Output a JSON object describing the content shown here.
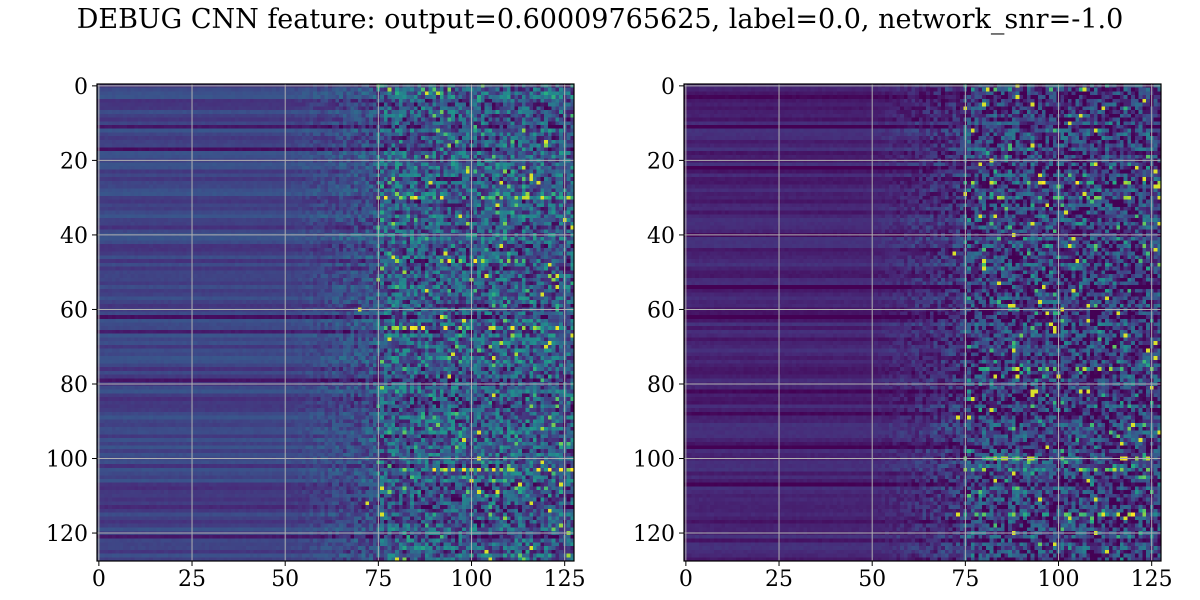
{
  "title": "DEBUG CNN feature: output=0.60009765625, label=0.0, network_snr=-1.0",
  "chart_data": [
    {
      "type": "heatmap",
      "shape": [
        128,
        128
      ],
      "colormap": "viridis",
      "grid": true,
      "xlim": [
        0,
        127
      ],
      "ylim": [
        127,
        0
      ],
      "x_ticks": [
        0,
        25,
        50,
        75,
        100,
        125
      ],
      "y_ticks": [
        0,
        20,
        40,
        60,
        80,
        100,
        120
      ],
      "x_tick_labels": [
        "0",
        "25",
        "50",
        "75",
        "100",
        "125"
      ],
      "y_tick_labels": [
        "0",
        "20",
        "40",
        "60",
        "80",
        "100",
        "120"
      ],
      "pattern": {
        "smooth_columns": [
          0,
          50
        ],
        "noisy_columns": [
          75,
          127
        ],
        "bright_rows": [
          30,
          47,
          65,
          103
        ],
        "dark_rows": [
          11,
          17,
          62,
          66,
          79,
          84,
          108,
          113,
          121
        ]
      }
    },
    {
      "type": "heatmap",
      "shape": [
        128,
        128
      ],
      "colormap": "viridis",
      "grid": true,
      "xlim": [
        0,
        127
      ],
      "ylim": [
        127,
        0
      ],
      "x_ticks": [
        0,
        25,
        50,
        75,
        100,
        125
      ],
      "y_ticks": [
        0,
        20,
        40,
        60,
        80,
        100,
        120
      ],
      "x_tick_labels": [
        "0",
        "25",
        "50",
        "75",
        "100",
        "125"
      ],
      "y_tick_labels": [
        "0",
        "20",
        "40",
        "60",
        "80",
        "100",
        "120"
      ],
      "pattern": {
        "smooth_columns": [
          0,
          50
        ],
        "noisy_columns": [
          75,
          127
        ],
        "bright_rows": [
          26,
          30,
          76,
          100,
          103,
          115
        ],
        "dark_rows": [
          3,
          11,
          22,
          40,
          54,
          62,
          82,
          88,
          97,
          107
        ]
      }
    }
  ]
}
